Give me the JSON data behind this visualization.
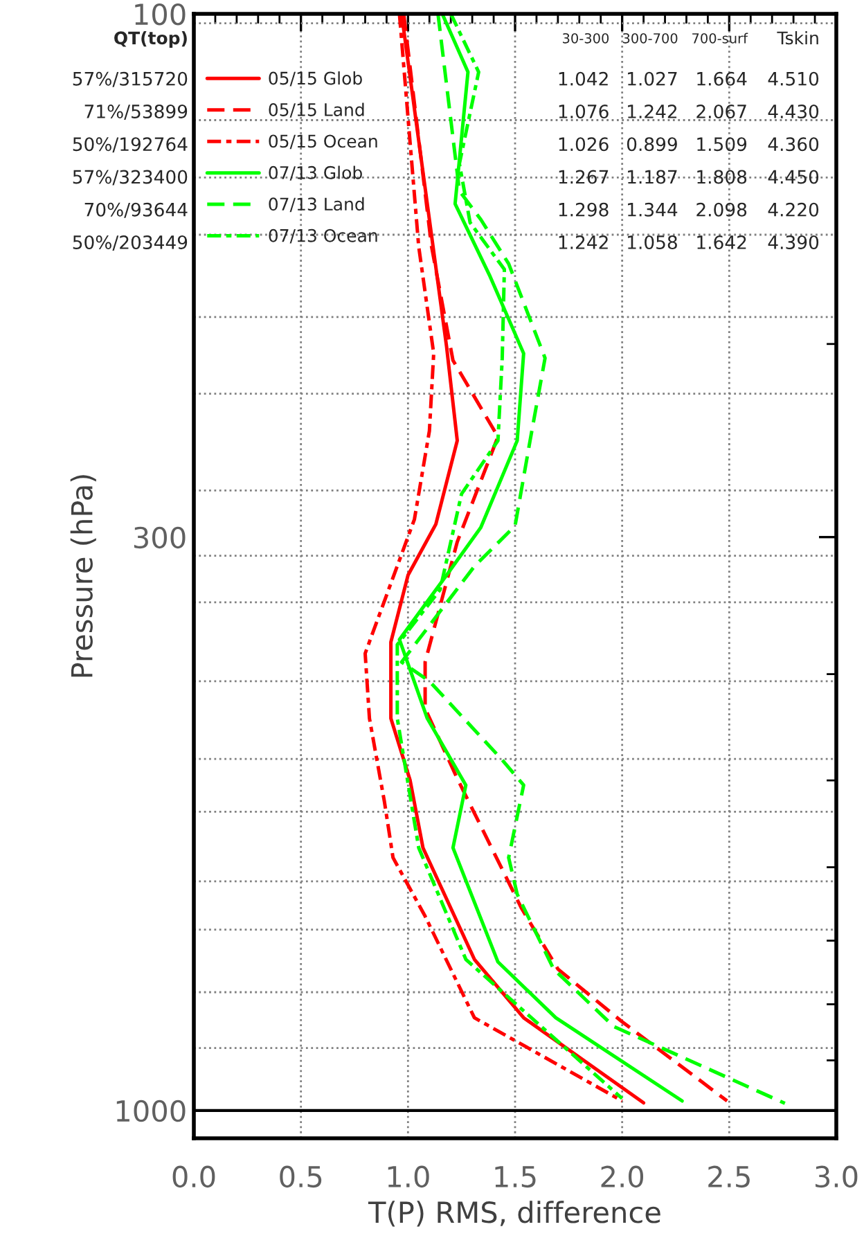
{
  "chart_data": {
    "type": "line",
    "xlabel": "T(P) RMS, difference",
    "ylabel": "Pressure (hPa)",
    "log": "y",
    "xlim": [
      0,
      3
    ],
    "ylim": [
      1060,
      100
    ],
    "xticks": [
      {
        "value": 0,
        "label": "0.0"
      },
      {
        "value": 0.1,
        "label": null
      },
      {
        "value": 0.2,
        "label": null
      },
      {
        "value": 0.3,
        "label": null
      },
      {
        "value": 0.4,
        "label": null
      },
      0.5,
      {
        "value": 0.6,
        "label": null
      },
      {
        "value": 0.7,
        "label": null
      },
      {
        "value": 0.8,
        "label": null
      },
      {
        "value": 0.9,
        "label": null
      },
      {
        "value": 1,
        "label": "1.0"
      },
      {
        "value": 1.1,
        "label": null
      },
      {
        "value": 1.2,
        "label": null
      },
      {
        "value": 1.3,
        "label": null
      },
      {
        "value": 1.4,
        "label": null
      },
      1.5,
      {
        "value": 1.6,
        "label": null
      },
      {
        "value": 1.7,
        "label": null
      },
      {
        "value": 1.8,
        "label": null
      },
      {
        "value": 1.9,
        "label": null
      },
      {
        "value": 2,
        "label": "2.0"
      },
      {
        "value": 2.1,
        "label": null
      },
      {
        "value": 2.2,
        "label": null
      },
      {
        "value": 2.3,
        "label": null
      },
      {
        "value": 2.4,
        "label": null
      },
      2.5,
      {
        "value": 2.6,
        "label": null
      },
      {
        "value": 2.7,
        "label": null
      },
      {
        "value": 2.8,
        "label": null
      },
      {
        "value": 2.9,
        "label": null
      },
      {
        "value": 3,
        "label": "3.0"
      }
    ],
    "yticks": [
      100,
      {
        "value": 200,
        "label": null
      },
      300,
      {
        "value": 400,
        "label": null
      },
      {
        "value": 500,
        "label": null
      },
      {
        "value": 600,
        "label": null
      },
      {
        "value": 700,
        "label": null
      },
      {
        "value": 800,
        "label": null
      },
      {
        "value": 900,
        "label": null
      },
      1000
    ],
    "grid": "x",
    "legend": "top left",
    "marker": "none",
    "series": [
      {
        "name": "05/15 Glob",
        "color": "#ff0000",
        "line_style": "solid",
        "x": [
          0.97,
          1.18,
          1.23,
          1.13,
          1.0,
          0.92,
          0.92,
          1.01,
          1.07,
          1.31,
          1.54,
          2.1
        ],
        "values": [
          100,
          201,
          245,
          292,
          325,
          374,
          439,
          500,
          576,
          728,
          823,
          984
        ]
      },
      {
        "name": "05/15 Land",
        "color": "#ff0000",
        "line_style": "dashed",
        "x": [
          0.98,
          1.11,
          1.21,
          1.42,
          1.23,
          1.08,
          1.08,
          1.23,
          1.53,
          1.7,
          2.0,
          2.49
        ],
        "values": [
          100,
          163,
          207,
          243,
          303,
          390,
          430,
          498,
          654,
          743,
          830,
          980
        ]
      },
      {
        "name": "05/15 Ocean",
        "color": "#ff0000",
        "line_style": "dashdot",
        "x": [
          0.96,
          1.05,
          1.12,
          1.1,
          1.03,
          0.8,
          0.82,
          0.89,
          0.93,
          1.08,
          1.31,
          2.0
        ],
        "values": [
          100,
          163,
          204,
          240,
          289,
          383,
          439,
          523,
          588,
          665,
          823,
          980
        ]
      },
      {
        "name": "07/13 Glob",
        "color": "#00ff00",
        "line_style": "solid",
        "x": [
          1.16,
          1.28,
          1.22,
          1.38,
          1.54,
          1.51,
          1.34,
          1.18,
          0.96,
          1.09,
          1.27,
          1.21,
          1.42,
          1.69,
          2.28
        ],
        "values": [
          100,
          113,
          149,
          173,
          204,
          245,
          294,
          325,
          372,
          439,
          505,
          576,
          732,
          823,
          980
        ]
      },
      {
        "name": "07/13 Land",
        "color": "#00ff00",
        "line_style": "dashed",
        "x": [
          1.14,
          1.24,
          1.34,
          1.47,
          1.64,
          1.57,
          1.5,
          1.31,
          0.97,
          1.1,
          1.44,
          1.54,
          1.47,
          1.51,
          1.68,
          1.96,
          2.76
        ],
        "values": [
          100,
          145,
          154,
          169,
          206,
          245,
          293,
          319,
          390,
          406,
          479,
          505,
          588,
          635,
          743,
          838,
          985
        ]
      },
      {
        "name": "07/13 Ocean",
        "color": "#00ff00",
        "line_style": "dashdot",
        "x": [
          1.2,
          1.33,
          1.24,
          1.29,
          1.45,
          1.44,
          1.42,
          1.25,
          1.15,
          0.95,
          0.95,
          1.05,
          1.27,
          2.0
        ],
        "values": [
          100,
          113,
          137,
          155,
          171,
          206,
          245,
          274,
          335,
          376,
          439,
          576,
          728,
          975
        ]
      }
    ],
    "ref_lines": [
      {
        "axis": "y",
        "value": 102,
        "color": "#808080",
        "line_style": "dotted"
      },
      {
        "axis": "y",
        "value": 125,
        "color": "#808080",
        "line_style": "dotted"
      },
      {
        "axis": "y",
        "value": 141,
        "color": "#808080",
        "line_style": "dotted"
      },
      {
        "axis": "y",
        "value": 159,
        "color": "#808080",
        "line_style": "dotted"
      },
      {
        "axis": "y",
        "value": 189,
        "color": "#808080",
        "line_style": "dotted"
      },
      {
        "axis": "y",
        "value": 222,
        "color": "#808080",
        "line_style": "dotted"
      },
      {
        "axis": "y",
        "value": 272,
        "color": "#808080",
        "line_style": "dotted"
      },
      {
        "axis": "y",
        "value": 312,
        "color": "#808080",
        "line_style": "dotted"
      },
      {
        "axis": "y",
        "value": 344,
        "color": "#808080",
        "line_style": "dotted"
      },
      {
        "axis": "y",
        "value": 406,
        "color": "#808080",
        "line_style": "dotted"
      },
      {
        "axis": "y",
        "value": 478,
        "color": "#808080",
        "line_style": "dotted"
      },
      {
        "axis": "y",
        "value": 534,
        "color": "#808080",
        "line_style": "dotted"
      },
      {
        "axis": "y",
        "value": 618,
        "color": "#808080",
        "line_style": "dotted"
      },
      {
        "axis": "y",
        "value": 684,
        "color": "#808080",
        "line_style": "dotted"
      },
      {
        "axis": "y",
        "value": 780,
        "color": "#808080",
        "line_style": "dotted"
      },
      {
        "axis": "y",
        "value": 877,
        "color": "#808080",
        "line_style": "dotted"
      },
      {
        "axis": "y",
        "value": 1000,
        "color": "#000000",
        "line_style": "solid"
      }
    ],
    "annotations": [
      "QT(top)",
      "57%/315720",
      "71%/53899",
      "50%/192764",
      "57%/323400",
      "70%/93644",
      "50%/203449",
      "30-300",
      "300-700",
      "700-surf",
      "Tskin",
      "1.042 1.027 1.664 4.510",
      "1.076 1.242 2.067 4.430",
      "1.026 0.899 1.509 4.360",
      "1.267 1.187 1.808 4.450",
      "1.298 1.344 2.098 4.220",
      "1.242 1.058 1.642 4.390"
    ]
  }
}
